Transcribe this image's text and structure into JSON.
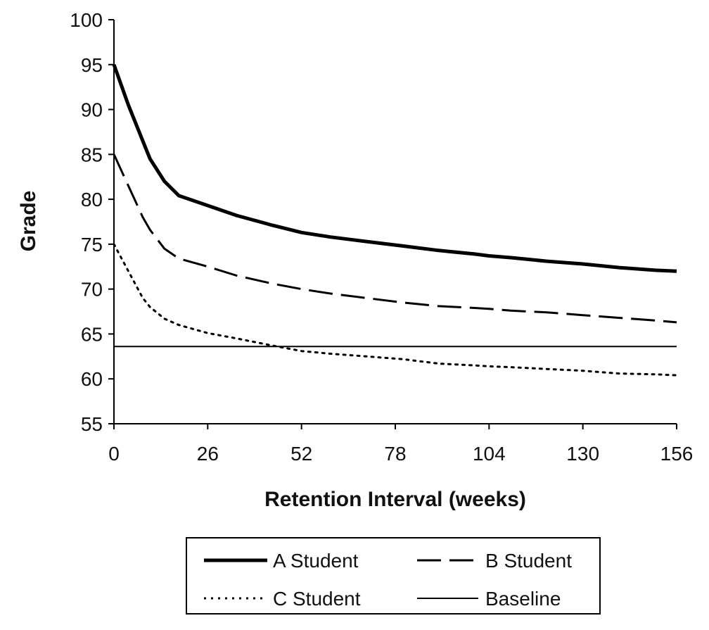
{
  "chart_data": {
    "type": "line",
    "title": "",
    "xlabel": "Retention Interval (weeks)",
    "ylabel": "Grade",
    "xlim": [
      0,
      156
    ],
    "ylim": [
      55,
      100
    ],
    "xticks": [
      0,
      26,
      52,
      78,
      104,
      130,
      156
    ],
    "yticks": [
      55,
      60,
      65,
      70,
      75,
      80,
      85,
      90,
      95,
      100
    ],
    "grid": false,
    "legend_position": "bottom",
    "series": [
      {
        "name": "A Student",
        "style": "solid-thick",
        "x": [
          0,
          4,
          8,
          10,
          14,
          18,
          26,
          34,
          44,
          52,
          60,
          70,
          80,
          90,
          100,
          104,
          110,
          120,
          130,
          140,
          150,
          156
        ],
        "y": [
          95,
          90.5,
          86.5,
          84.5,
          82,
          80.4,
          79.3,
          78.2,
          77.1,
          76.3,
          75.8,
          75.3,
          74.8,
          74.3,
          73.9,
          73.7,
          73.5,
          73.1,
          72.8,
          72.4,
          72.1,
          72
        ]
      },
      {
        "name": "B Student",
        "style": "long-dash",
        "x": [
          0,
          4,
          8,
          10,
          14,
          18,
          26,
          34,
          44,
          52,
          60,
          70,
          80,
          90,
          100,
          104,
          110,
          120,
          130,
          140,
          150,
          156
        ],
        "y": [
          85,
          81.5,
          78,
          76.6,
          74.5,
          73.4,
          72.5,
          71.5,
          70.6,
          70,
          69.5,
          69,
          68.5,
          68.1,
          67.9,
          67.8,
          67.6,
          67.4,
          67.1,
          66.8,
          66.5,
          66.3
        ]
      },
      {
        "name": "C Student",
        "style": "dotted",
        "x": [
          0,
          4,
          8,
          10,
          14,
          18,
          26,
          34,
          44,
          52,
          60,
          70,
          80,
          90,
          100,
          104,
          110,
          120,
          130,
          140,
          150,
          156
        ],
        "y": [
          75,
          72,
          69,
          68,
          66.7,
          66,
          65.1,
          64.5,
          63.7,
          63.1,
          62.8,
          62.5,
          62.2,
          61.7,
          61.5,
          61.4,
          61.3,
          61.1,
          60.9,
          60.6,
          60.5,
          60.4
        ]
      },
      {
        "name": "Baseline",
        "style": "solid-thin",
        "x": [
          0,
          156
        ],
        "y": [
          63.6,
          63.6
        ]
      }
    ]
  }
}
